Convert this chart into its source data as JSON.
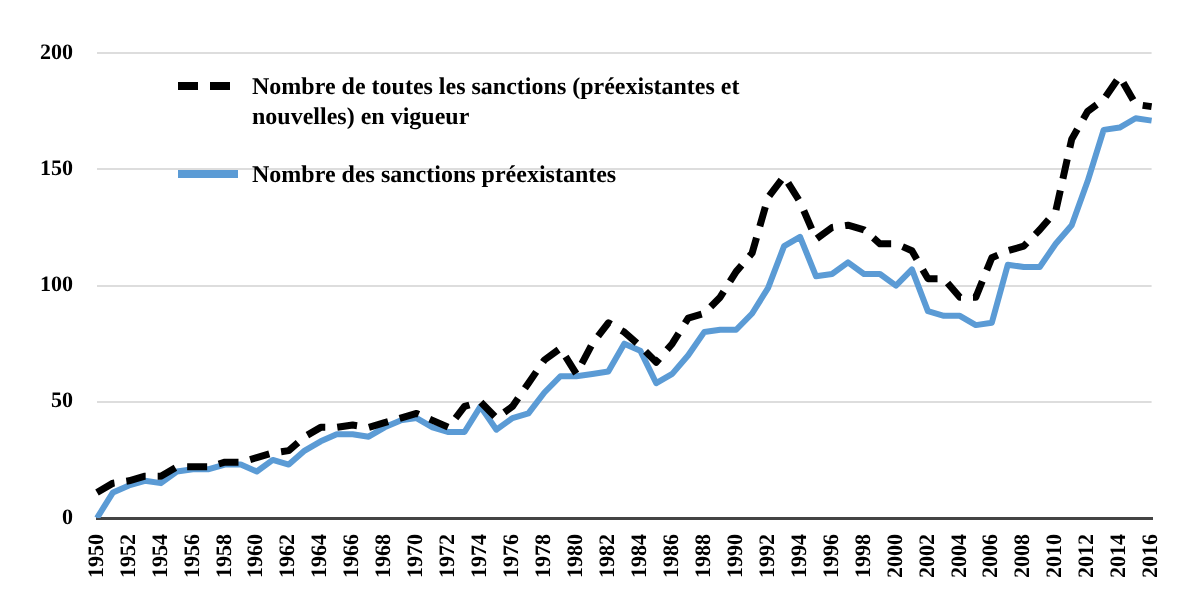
{
  "chart_data": {
    "type": "line",
    "categories": [
      "1950",
      null,
      "1952",
      null,
      "1954",
      null,
      "1956",
      null,
      "1958",
      null,
      "1960",
      null,
      "1962",
      null,
      "1964",
      null,
      "1966",
      null,
      "1968",
      null,
      "1970",
      null,
      "1972",
      null,
      "1974",
      null,
      "1976",
      null,
      "1978",
      null,
      "1980",
      null,
      "1982",
      null,
      "1984",
      null,
      "1986",
      null,
      "1988",
      null,
      "1990",
      null,
      "1992",
      null,
      "1994",
      null,
      "1996",
      null,
      "1998",
      null,
      "2000",
      null,
      "2002",
      null,
      "2004",
      null,
      "2006",
      null,
      "2008",
      null,
      "2010",
      null,
      "2012",
      null,
      "2014",
      null,
      "2016"
    ],
    "series": [
      {
        "name": "Nombre de toutes les sanctions (préexistantes et nouvelles) en vigueur",
        "color": "#000000",
        "line_style": "dashed",
        "values": [
          11,
          15,
          16,
          18,
          18,
          22,
          22,
          22,
          24,
          24,
          26,
          28,
          29,
          35,
          39,
          39,
          40,
          39,
          41,
          43,
          45,
          42,
          39,
          48,
          50,
          43,
          48,
          58,
          68,
          73,
          62,
          75,
          84,
          80,
          74,
          67,
          75,
          86,
          88,
          95,
          106,
          114,
          138,
          147,
          136,
          120,
          125,
          126,
          124,
          118,
          118,
          115,
          103,
          103,
          95,
          95,
          112,
          115,
          117,
          124,
          132,
          163,
          175,
          180,
          190,
          178,
          177
        ]
      },
      {
        "name": "Nombre des sanctions préexistantes",
        "color": "#5b9bd5",
        "line_style": "solid",
        "values": [
          0,
          11,
          14,
          16,
          15,
          20,
          21,
          21,
          23,
          23,
          20,
          25,
          23,
          29,
          33,
          36,
          36,
          35,
          39,
          42,
          43,
          39,
          37,
          37,
          48,
          38,
          43,
          45,
          54,
          61,
          61,
          62,
          63,
          75,
          72,
          58,
          62,
          70,
          80,
          81,
          81,
          88,
          99,
          117,
          121,
          104,
          105,
          110,
          105,
          105,
          100,
          107,
          89,
          87,
          87,
          83,
          84,
          109,
          108,
          108,
          118,
          126,
          145,
          167,
          168,
          172,
          171
        ]
      }
    ],
    "ylim": [
      0,
      200
    ],
    "yticks": [
      0,
      50,
      100,
      150,
      200
    ],
    "grid": "y",
    "legend": "top left",
    "marker": "none"
  }
}
